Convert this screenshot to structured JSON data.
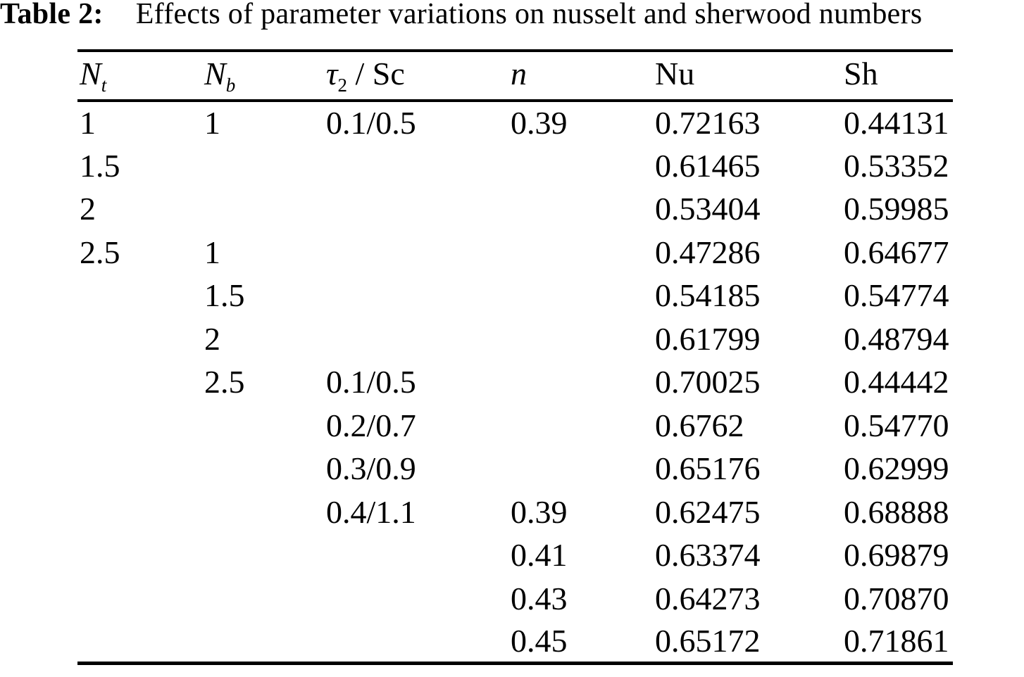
{
  "caption": {
    "label": "Table 2:",
    "text": "Effects of parameter variations on nusselt and sherwood numbers"
  },
  "chart_data": {
    "type": "table",
    "title": "Effects of parameter variations on nusselt and sherwood numbers",
    "columns": [
      {
        "name": "Nt",
        "base": "N",
        "sub": "t",
        "rest": ""
      },
      {
        "name": "Nb",
        "base": "N",
        "sub": "b",
        "rest": ""
      },
      {
        "name": "tau2/Sc",
        "base": "τ",
        "sub": "2",
        "rest": " / Sc"
      },
      {
        "name": "n",
        "base": "n",
        "sub": "",
        "rest": ""
      },
      {
        "name": "Nu",
        "base": "Nu",
        "sub": "",
        "rest": ""
      },
      {
        "name": "Sh",
        "base": "Sh",
        "sub": "",
        "rest": ""
      }
    ],
    "rows": [
      [
        "1",
        "1",
        "0.1/0.5",
        "0.39",
        "0.72163",
        "0.44131"
      ],
      [
        "1.5",
        "",
        "",
        "",
        "0.61465",
        "0.53352"
      ],
      [
        "2",
        "",
        "",
        "",
        "0.53404",
        "0.59985"
      ],
      [
        "2.5",
        "1",
        "",
        "",
        "0.47286",
        "0.64677"
      ],
      [
        "",
        "1.5",
        "",
        "",
        "0.54185",
        "0.54774"
      ],
      [
        "",
        "2",
        "",
        "",
        "0.61799",
        "0.48794"
      ],
      [
        "",
        "2.5",
        "0.1/0.5",
        "",
        "0.70025",
        "0.44442"
      ],
      [
        "",
        "",
        "0.2/0.7",
        "",
        "0.6762",
        "0.54770"
      ],
      [
        "",
        "",
        "0.3/0.9",
        "",
        "0.65176",
        "0.62999"
      ],
      [
        "",
        "",
        "0.4/1.1",
        "0.39",
        "0.62475",
        "0.68888"
      ],
      [
        "",
        "",
        "",
        "0.41",
        "0.63374",
        "0.69879"
      ],
      [
        "",
        "",
        "",
        "0.43",
        "0.64273",
        "0.70870"
      ],
      [
        "",
        "",
        "",
        "0.45",
        "0.65172",
        "0.71861"
      ]
    ]
  }
}
